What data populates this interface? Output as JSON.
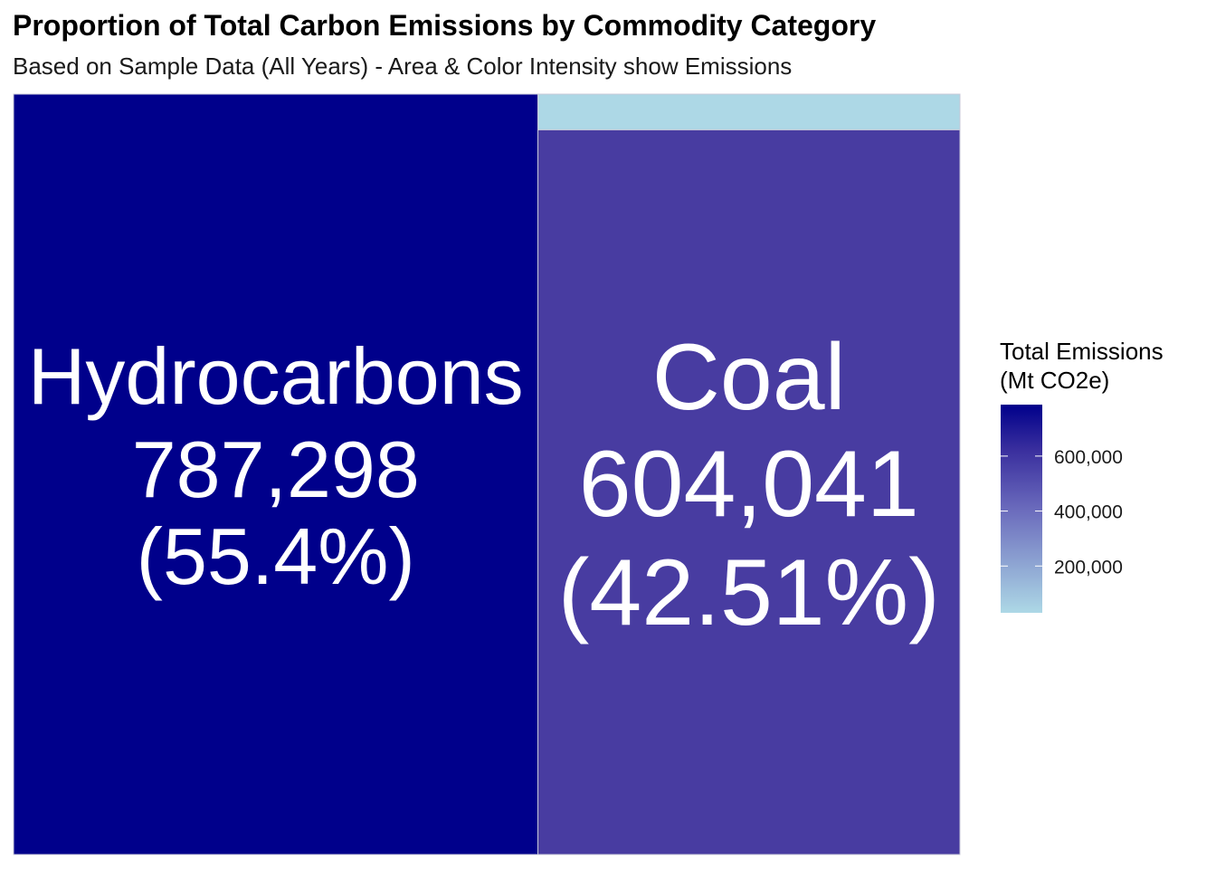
{
  "chart_data": {
    "type": "treemap",
    "title": "Proportion of Total Carbon Emissions by Commodity Category",
    "subtitle": "Based on Sample Data (All Years) - Area & Color Intensity show Emissions",
    "series": [
      {
        "name": "Hydrocarbons",
        "value": 787298,
        "value_label": "787,298",
        "percent_label": "(55.4%)",
        "color": "#00008b"
      },
      {
        "name": "Coal",
        "value": 604041,
        "value_label": "604,041",
        "percent_label": "(42.51%)",
        "color": "#483ca1"
      },
      {
        "name": "",
        "value": 29700,
        "value_label": "",
        "percent_label": "",
        "color": "#add8e6"
      }
    ],
    "legend": {
      "title_line1": "Total Emissions",
      "title_line2": "(Mt CO2e)",
      "low_color": "#add8e6",
      "high_color": "#00008b",
      "range": [
        29700,
        787298
      ],
      "ticks": [
        {
          "value": 600000,
          "label": "600,000"
        },
        {
          "value": 400000,
          "label": "400,000"
        },
        {
          "value": 200000,
          "label": "200,000"
        }
      ]
    }
  }
}
